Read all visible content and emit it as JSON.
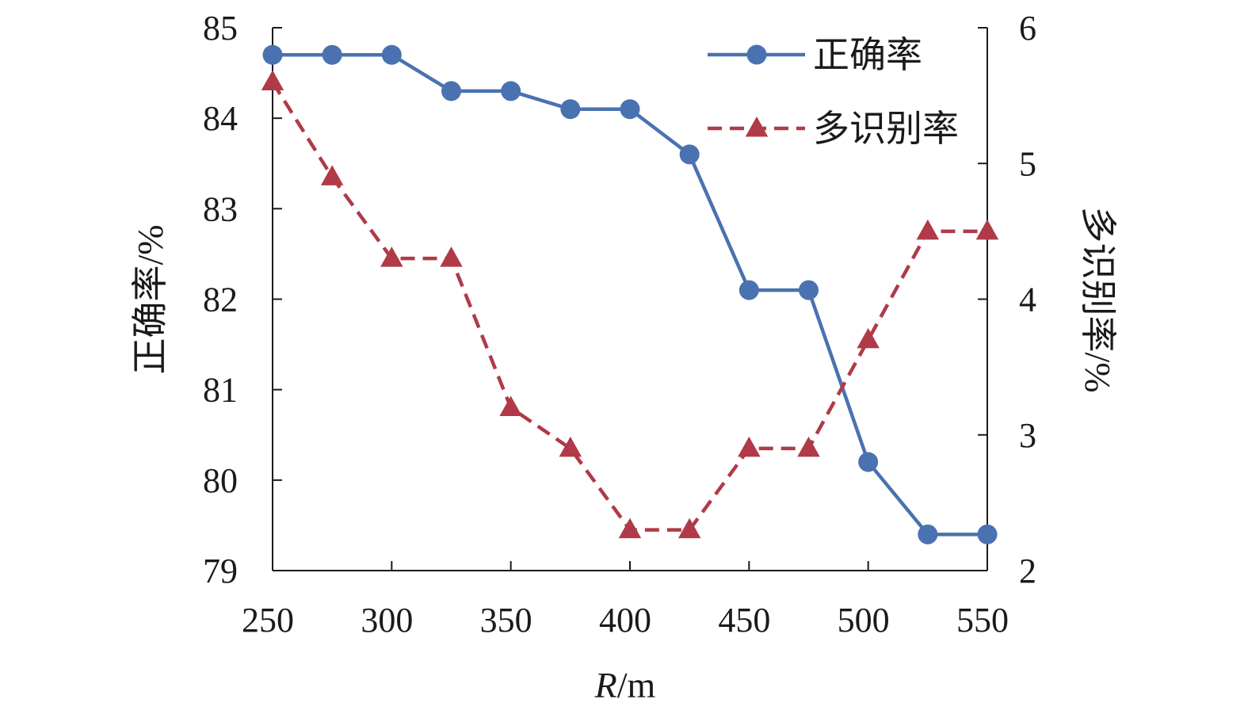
{
  "chart_data": {
    "type": "line",
    "x": [
      250,
      275,
      300,
      325,
      350,
      375,
      400,
      425,
      450,
      475,
      500,
      525,
      550
    ],
    "xlabel_italic": "R",
    "xlabel_unit": "/m",
    "xlim": [
      250,
      550
    ],
    "xticks": [
      "250",
      "300",
      "350",
      "400",
      "450",
      "500",
      "550"
    ],
    "ylabel_left": "正确率/%",
    "ylim_left": [
      79,
      85
    ],
    "yticks_left": [
      "79",
      "80",
      "81",
      "82",
      "83",
      "84",
      "85"
    ],
    "ylabel_right": "多识别率/%",
    "ylim_right": [
      2,
      6
    ],
    "yticks_right": [
      "2",
      "3",
      "4",
      "5",
      "6"
    ],
    "legend_position": "top-right",
    "grid": false,
    "series": [
      {
        "name": "正确率",
        "axis": "left",
        "style": "solid",
        "marker": "circle",
        "color": "#4a72b0",
        "values": [
          84.7,
          84.7,
          84.7,
          84.3,
          84.3,
          84.1,
          84.1,
          83.6,
          82.1,
          82.1,
          80.2,
          79.4,
          79.4
        ]
      },
      {
        "name": "多识别率",
        "axis": "right",
        "style": "dashed",
        "marker": "triangle",
        "color": "#b03a48",
        "values": [
          5.6,
          4.9,
          4.3,
          4.3,
          3.2,
          2.9,
          2.3,
          2.3,
          2.9,
          2.9,
          3.7,
          4.5,
          4.5
        ]
      }
    ]
  }
}
